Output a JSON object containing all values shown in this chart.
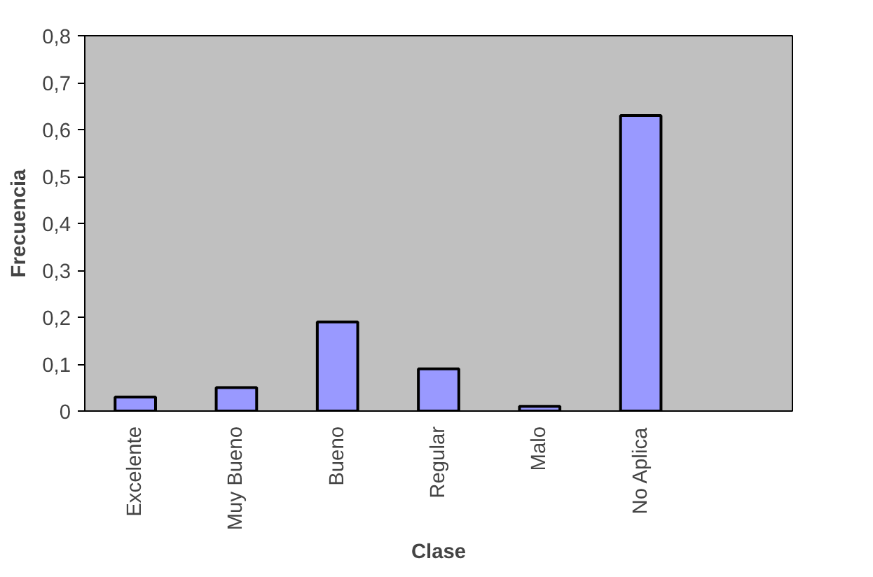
{
  "chart_data": {
    "type": "bar",
    "xlabel": "Clase",
    "ylabel": "Frecuencia",
    "categories": [
      "Excelente",
      "Muy Bueno",
      "Bueno",
      "Regular",
      "Malo",
      "No Aplica",
      null
    ],
    "values": [
      0.03,
      0.05,
      0.19,
      0.09,
      0.01,
      0.63,
      null
    ],
    "color": "#9999ff",
    "ylim": [
      0,
      0.8
    ],
    "yticks": [
      0,
      {
        "value": 0.1,
        "label": "0,1"
      },
      {
        "value": 0.2,
        "label": "0,2"
      },
      {
        "value": 0.3,
        "label": "0,3"
      },
      {
        "value": 0.4,
        "label": "0,4"
      },
      {
        "value": 0.5,
        "label": "0,5"
      },
      {
        "value": 0.6,
        "label": "0,6"
      },
      {
        "value": 0.7,
        "label": "0,7"
      },
      {
        "value": 0.8,
        "label": "0,8"
      }
    ],
    "grid": false
  }
}
